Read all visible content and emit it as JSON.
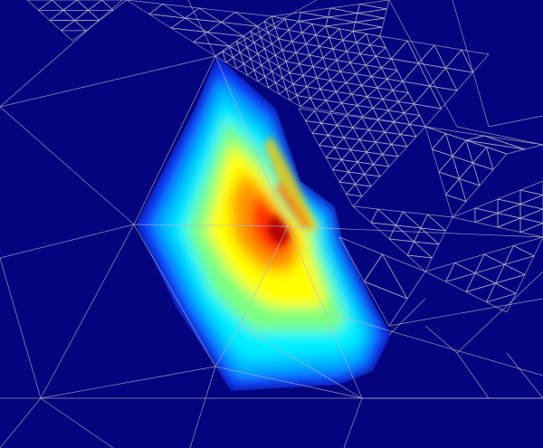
{
  "figure": {
    "type": "finite-element mesh with scalar field",
    "colormap": "jet",
    "colors": {
      "background": "#04047e",
      "mesh_lines": "#b8b8cc",
      "jet_stops": [
        "#04047e",
        "#0000ff",
        "#00bfff",
        "#00ffff",
        "#7fff7f",
        "#ffff00",
        "#ff9000",
        "#ff2000",
        "#a00000"
      ]
    }
  }
}
